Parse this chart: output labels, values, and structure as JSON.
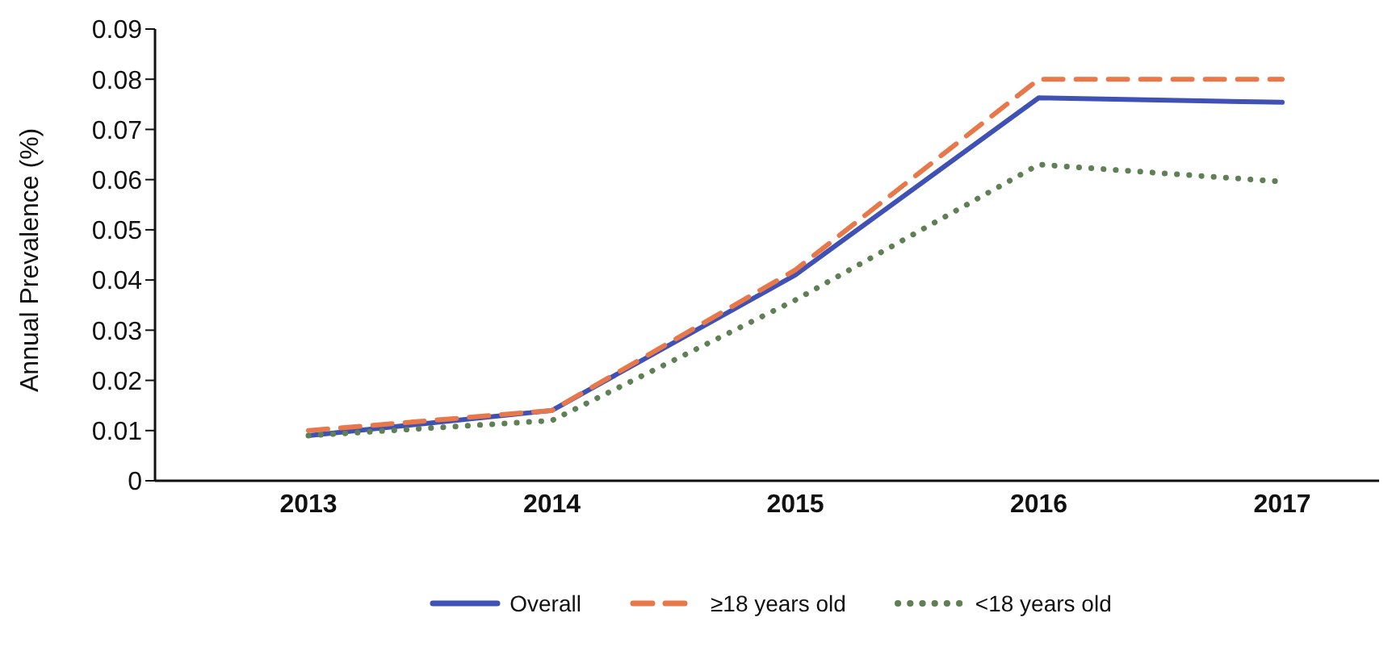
{
  "chart_data": {
    "type": "line",
    "ylabel": "Annual Prevalence (%)",
    "categories": [
      "2013",
      "2014",
      "2015",
      "2016",
      "2017"
    ],
    "series": [
      {
        "name": "Overall",
        "color": "#3f51b5",
        "line_style": "solid",
        "values": [
          0.009,
          0.014,
          0.041,
          0.0763,
          0.0754
        ]
      },
      {
        "name": "≥18 years old",
        "color": "#e8784a",
        "line_style": "dashed",
        "values": [
          0.01,
          0.014,
          0.042,
          0.08,
          0.08
        ]
      },
      {
        "name": "<18 years old",
        "color": "#5f7f55",
        "line_style": "dotted",
        "values": [
          0.009,
          0.012,
          0.036,
          0.063,
          0.0596
        ]
      }
    ],
    "ylim": [
      0,
      0.09
    ],
    "yticks": [
      0,
      0.01,
      0.02,
      0.03,
      0.04,
      0.05,
      0.06,
      0.07,
      0.08,
      0.09
    ],
    "grid": false,
    "legend": "bottom",
    "marker": "none"
  }
}
